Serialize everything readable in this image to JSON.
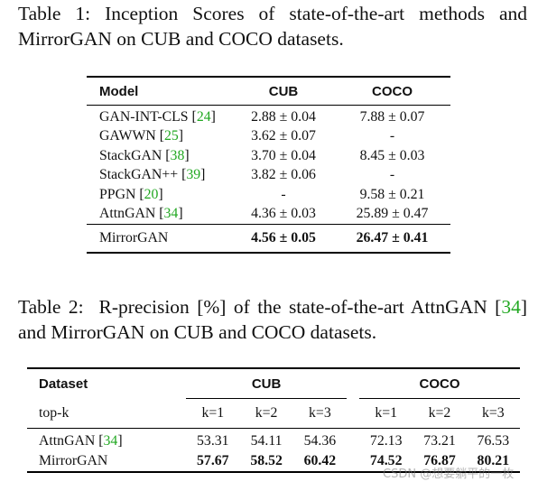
{
  "table1": {
    "caption_prefix": "Table 1:",
    "caption_text": "Inception Scores of state-of-the-art methods and MirrorGAN on CUB and COCO datasets.",
    "headers": [
      "Model",
      "CUB",
      "COCO"
    ],
    "rows": [
      {
        "model": "GAN-INT-CLS",
        "ref": "24",
        "cub": "2.88 ± 0.04",
        "coco": "7.88 ± 0.07"
      },
      {
        "model": "GAWWN",
        "ref": "25",
        "cub": "3.62 ± 0.07",
        "coco": "-"
      },
      {
        "model": "StackGAN",
        "ref": "38",
        "cub": "3.70 ± 0.04",
        "coco": "8.45 ± 0.03"
      },
      {
        "model": "StackGAN++",
        "ref": "39",
        "cub": "3.82 ± 0.06",
        "coco": "-"
      },
      {
        "model": "PPGN",
        "ref": "20",
        "cub": "-",
        "coco": "9.58 ± 0.21"
      },
      {
        "model": "AttnGAN",
        "ref": "34",
        "cub": "4.36 ± 0.03",
        "coco": "25.89 ± 0.47"
      }
    ],
    "final_row": {
      "model": "MirrorGAN",
      "cub": "4.56 ± 0.05",
      "coco": "26.47 ± 0.41"
    }
  },
  "table2": {
    "caption_prefix": "Table 2:",
    "caption_text_a": "R-precision [%] of the state-of-the-art AttnGAN [",
    "caption_ref": "34",
    "caption_text_b": "] and MirrorGAN on CUB and COCO datasets.",
    "dataset_header": "Dataset",
    "group_headers": [
      "CUB",
      "COCO"
    ],
    "topk_label": "top-k",
    "k_labels": [
      "k=1",
      "k=2",
      "k=3",
      "k=1",
      "k=2",
      "k=3"
    ],
    "rows": [
      {
        "model": "AttnGAN",
        "ref": "34",
        "values": [
          "53.31",
          "54.11",
          "54.36",
          "72.13",
          "73.21",
          "76.53"
        ]
      },
      {
        "model": "MirrorGAN",
        "values": [
          "57.67",
          "58.52",
          "60.42",
          "74.52",
          "76.87",
          "80.21"
        ]
      }
    ]
  },
  "watermark": "CSDN @想要躺平的一枚",
  "colors": {
    "citation": "#22a822",
    "text": "#111111"
  }
}
